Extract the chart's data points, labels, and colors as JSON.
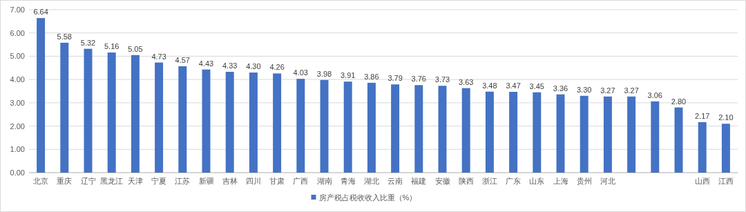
{
  "chart_data": {
    "type": "bar",
    "categories": [
      "北京",
      "重庆",
      "辽宁",
      "黑龙江",
      "天津",
      "宁夏",
      "江苏",
      "新疆",
      "吉林",
      "四川",
      "甘肃",
      "广西",
      "湖南",
      "青海",
      "湖北",
      "云南",
      "福建",
      "安徽",
      "陕西",
      "浙江",
      "广东",
      "山东",
      "上海",
      "贵州",
      "河北",
      null,
      null,
      null,
      "山西",
      "江西"
    ],
    "series": [
      {
        "name": "房产税占税收收入比重（%）",
        "color": "#4472c4",
        "values": [
          6.64,
          5.58,
          5.32,
          5.16,
          5.05,
          4.73,
          4.57,
          4.43,
          4.33,
          4.3,
          4.26,
          4.03,
          3.98,
          3.91,
          3.86,
          3.79,
          3.76,
          3.73,
          3.63,
          3.48,
          3.47,
          3.45,
          3.36,
          3.3,
          3.27,
          3.27,
          3.06,
          2.8,
          2.17,
          2.1
        ]
      }
    ],
    "ylim": [
      0,
      7
    ],
    "yticks": [
      {
        "value": 0,
        "label": "0.00"
      },
      {
        "value": 1,
        "label": "1.00"
      },
      {
        "value": 2,
        "label": "2.00"
      },
      {
        "value": 3,
        "label": "3.00"
      },
      {
        "value": 4,
        "label": "4.00"
      },
      {
        "value": 5,
        "label": "5.00"
      },
      {
        "value": 6,
        "label": "6.00"
      },
      {
        "value": 7,
        "label": "7.00"
      }
    ],
    "value_labels": [
      "6.64",
      "5.58",
      "5.32",
      "5.16",
      "5.05",
      "4.73",
      "4.57",
      "4.43",
      "4.33",
      "4.30",
      "4.26",
      "4.03",
      "3.98",
      "3.91",
      "3.86",
      "3.79",
      "3.76",
      "3.73",
      "3.63",
      "3.48",
      "3.47",
      "3.45",
      "3.36",
      "3.30",
      "3.27",
      "3.27",
      "3.06",
      "2.80",
      "2.17",
      "2.10"
    ],
    "grid": "y",
    "legend": "bottom"
  }
}
